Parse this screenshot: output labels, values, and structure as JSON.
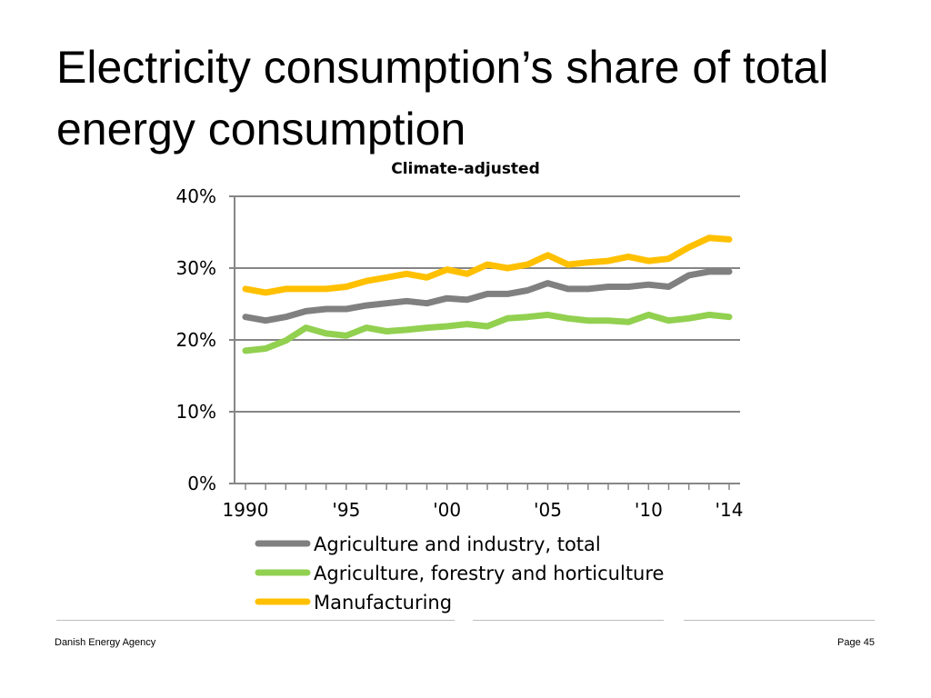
{
  "slide": {
    "title": "Electricity consumption’s share of total energy consumption",
    "footer_left": "Danish Energy Agency",
    "footer_right": "Page 45"
  },
  "chart_data": {
    "type": "line",
    "title": "Climate-adjusted",
    "xlabel": "",
    "ylabel": "",
    "ylim": [
      0,
      40
    ],
    "y_ticks": [
      0,
      10,
      20,
      30,
      40
    ],
    "y_tick_labels": [
      "0%",
      "10%",
      "20%",
      "30%",
      "40%"
    ],
    "x": [
      1990,
      1991,
      1992,
      1993,
      1994,
      1995,
      1996,
      1997,
      1998,
      1999,
      2000,
      2001,
      2002,
      2003,
      2004,
      2005,
      2006,
      2007,
      2008,
      2009,
      2010,
      2011,
      2012,
      2013,
      2014
    ],
    "x_tick_values": [
      1990,
      1995,
      2000,
      2005,
      2010,
      2014
    ],
    "x_tick_labels": [
      "1990",
      "'95",
      "'00",
      "'05",
      "'10",
      "'14"
    ],
    "grid": true,
    "legend_position": "bottom",
    "series": [
      {
        "name": "Agriculture and industry, total",
        "color": "#808080",
        "values": [
          23.2,
          22.7,
          23.2,
          24.0,
          24.3,
          24.3,
          24.8,
          25.1,
          25.4,
          25.1,
          25.8,
          25.6,
          26.4,
          26.4,
          26.9,
          27.9,
          27.1,
          27.1,
          27.4,
          27.4,
          27.7,
          27.4,
          29.0,
          29.5,
          29.5
        ]
      },
      {
        "name": "Agriculture, forestry and horticulture",
        "color": "#92d050",
        "values": [
          18.5,
          18.8,
          19.9,
          21.7,
          20.9,
          20.6,
          21.7,
          21.2,
          21.4,
          21.7,
          21.9,
          22.2,
          21.9,
          23.0,
          23.2,
          23.5,
          23.0,
          22.7,
          22.7,
          22.5,
          23.5,
          22.7,
          23.0,
          23.5,
          23.2
        ]
      },
      {
        "name": "Manufacturing",
        "color": "#ffc000",
        "values": [
          27.1,
          26.6,
          27.1,
          27.1,
          27.1,
          27.4,
          28.2,
          28.7,
          29.2,
          28.7,
          29.8,
          29.2,
          30.5,
          30.0,
          30.5,
          31.8,
          30.5,
          30.8,
          31.0,
          31.6,
          31.0,
          31.3,
          32.9,
          34.2,
          34.0
        ]
      }
    ]
  }
}
